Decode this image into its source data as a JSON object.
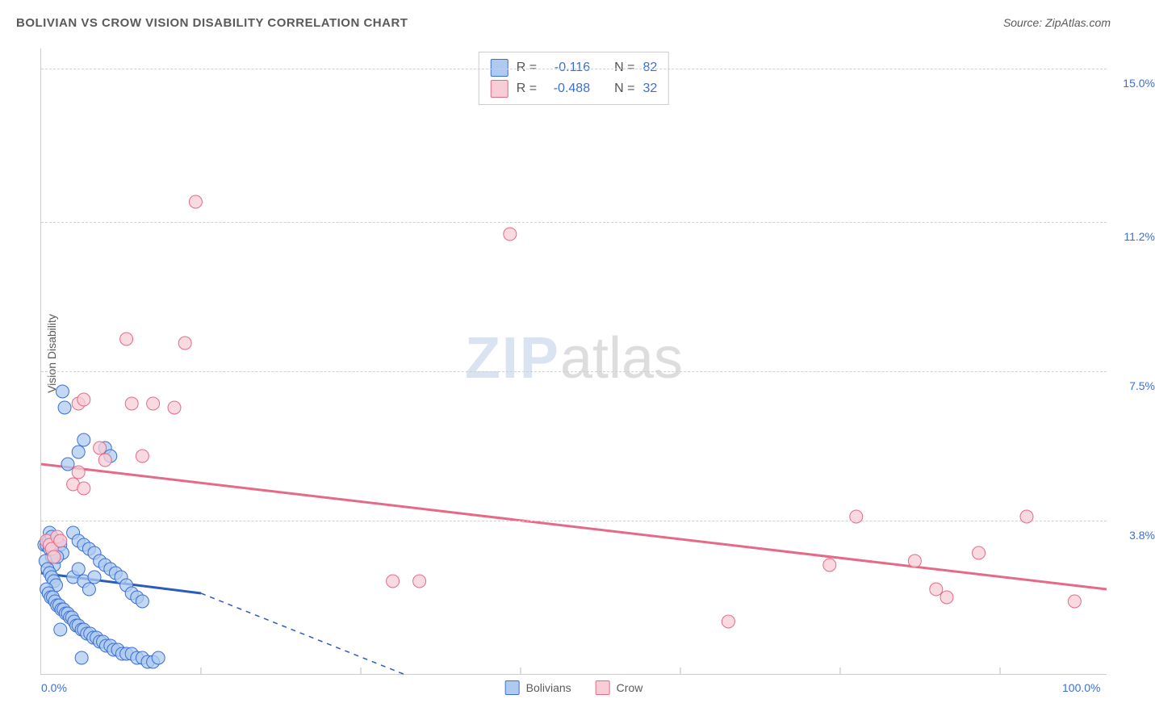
{
  "title": "BOLIVIAN VS CROW VISION DISABILITY CORRELATION CHART",
  "source": "Source: ZipAtlas.com",
  "watermark_bold": "ZIP",
  "watermark_light": "atlas",
  "y_axis_title": "Vision Disability",
  "chart": {
    "type": "scatter",
    "background_color": "#ffffff",
    "grid_color": "#d8d8d8",
    "xlim": [
      0,
      100
    ],
    "ylim": [
      0,
      15.5
    ],
    "x_ticks": [
      {
        "pos": 0.0,
        "label": "0.0%"
      },
      {
        "pos": 100.0,
        "label": "100.0%"
      }
    ],
    "x_minor_ticks": [
      15,
      30,
      45,
      60,
      75,
      90
    ],
    "y_ticks": [
      {
        "pos": 3.8,
        "label": "3.8%"
      },
      {
        "pos": 7.5,
        "label": "7.5%"
      },
      {
        "pos": 11.2,
        "label": "11.2%"
      },
      {
        "pos": 15.0,
        "label": "15.0%"
      }
    ],
    "series": [
      {
        "name": "Bolivians",
        "marker_fill": "#aecbef",
        "marker_stroke": "#3b6fd6",
        "marker_r": 8,
        "line_color": "#2c5bbd",
        "line_dash_ext": true,
        "regression": {
          "x1": 0,
          "y1": 2.5,
          "x2": 15,
          "y2": 2.0,
          "ext_x2": 34,
          "ext_y2": 0
        },
        "R": "-0.116",
        "N": "82",
        "points": [
          [
            0.3,
            3.2
          ],
          [
            0.5,
            3.2
          ],
          [
            0.7,
            3.3
          ],
          [
            0.8,
            3.1
          ],
          [
            1.0,
            2.9
          ],
          [
            1.2,
            2.7
          ],
          [
            0.4,
            2.8
          ],
          [
            0.6,
            2.6
          ],
          [
            0.8,
            2.5
          ],
          [
            1.0,
            2.4
          ],
          [
            1.2,
            2.3
          ],
          [
            1.4,
            2.2
          ],
          [
            0.5,
            2.1
          ],
          [
            0.7,
            2.0
          ],
          [
            0.9,
            1.9
          ],
          [
            1.1,
            1.9
          ],
          [
            1.3,
            1.8
          ],
          [
            1.5,
            1.7
          ],
          [
            1.7,
            1.7
          ],
          [
            1.9,
            1.6
          ],
          [
            2.1,
            1.6
          ],
          [
            2.3,
            1.5
          ],
          [
            2.5,
            1.5
          ],
          [
            2.7,
            1.4
          ],
          [
            2.9,
            1.4
          ],
          [
            3.1,
            1.3
          ],
          [
            3.3,
            1.2
          ],
          [
            3.5,
            1.2
          ],
          [
            3.8,
            1.1
          ],
          [
            4.0,
            1.1
          ],
          [
            4.3,
            1.0
          ],
          [
            4.6,
            1.0
          ],
          [
            4.9,
            0.9
          ],
          [
            5.2,
            0.9
          ],
          [
            5.5,
            0.8
          ],
          [
            5.8,
            0.8
          ],
          [
            6.1,
            0.7
          ],
          [
            6.5,
            0.7
          ],
          [
            6.8,
            0.6
          ],
          [
            7.2,
            0.6
          ],
          [
            7.6,
            0.5
          ],
          [
            8.0,
            0.5
          ],
          [
            8.5,
            0.5
          ],
          [
            9.0,
            0.4
          ],
          [
            9.5,
            0.4
          ],
          [
            10.0,
            0.3
          ],
          [
            10.5,
            0.3
          ],
          [
            11.0,
            0.4
          ],
          [
            3.0,
            3.5
          ],
          [
            3.5,
            3.3
          ],
          [
            4.0,
            3.2
          ],
          [
            4.5,
            3.1
          ],
          [
            5.0,
            3.0
          ],
          [
            5.5,
            2.8
          ],
          [
            6.0,
            2.7
          ],
          [
            6.5,
            2.6
          ],
          [
            7.0,
            2.5
          ],
          [
            7.5,
            2.4
          ],
          [
            8.0,
            2.2
          ],
          [
            8.5,
            2.0
          ],
          [
            9.0,
            1.9
          ],
          [
            9.5,
            1.8
          ],
          [
            2.5,
            5.2
          ],
          [
            3.5,
            5.5
          ],
          [
            4.0,
            5.8
          ],
          [
            2.0,
            7.0
          ],
          [
            2.2,
            6.6
          ],
          [
            6.0,
            5.6
          ],
          [
            6.5,
            5.4
          ],
          [
            1.5,
            3.3
          ],
          [
            1.8,
            3.2
          ],
          [
            2.0,
            3.0
          ],
          [
            0.8,
            3.5
          ],
          [
            1.0,
            3.4
          ],
          [
            1.5,
            2.9
          ],
          [
            3.0,
            2.4
          ],
          [
            3.5,
            2.6
          ],
          [
            4.0,
            2.3
          ],
          [
            4.5,
            2.1
          ],
          [
            5.0,
            2.4
          ],
          [
            1.8,
            1.1
          ],
          [
            3.8,
            0.4
          ]
        ]
      },
      {
        "name": "Crow",
        "marker_fill": "#f7cdd6",
        "marker_stroke": "#e56a88",
        "marker_r": 8,
        "line_color": "#e56a88",
        "line_dash_ext": false,
        "regression": {
          "x1": 0,
          "y1": 5.2,
          "x2": 100,
          "y2": 2.1
        },
        "R": "-0.488",
        "N": "32",
        "points": [
          [
            0.5,
            3.3
          ],
          [
            0.8,
            3.2
          ],
          [
            1.0,
            3.1
          ],
          [
            1.2,
            2.9
          ],
          [
            1.5,
            3.4
          ],
          [
            1.8,
            3.3
          ],
          [
            3.0,
            4.7
          ],
          [
            3.5,
            5.0
          ],
          [
            4.0,
            4.6
          ],
          [
            5.5,
            5.6
          ],
          [
            6.0,
            5.3
          ],
          [
            9.5,
            5.4
          ],
          [
            3.5,
            6.7
          ],
          [
            4.0,
            6.8
          ],
          [
            8.5,
            6.7
          ],
          [
            10.5,
            6.7
          ],
          [
            12.5,
            6.6
          ],
          [
            8.0,
            8.3
          ],
          [
            13.5,
            8.2
          ],
          [
            14.5,
            11.7
          ],
          [
            33.0,
            2.3
          ],
          [
            35.5,
            2.3
          ],
          [
            44.0,
            10.9
          ],
          [
            64.5,
            1.3
          ],
          [
            74.0,
            2.7
          ],
          [
            76.5,
            3.9
          ],
          [
            82.0,
            2.8
          ],
          [
            84.0,
            2.1
          ],
          [
            85.0,
            1.9
          ],
          [
            88.0,
            3.0
          ],
          [
            92.5,
            3.9
          ],
          [
            97.0,
            1.8
          ]
        ]
      }
    ],
    "legend_top": {
      "rows": [
        {
          "swatch_fill": "#aecbef",
          "swatch_stroke": "#3b6fd6",
          "r_label": "R =",
          "r_val": "-0.116",
          "n_label": "N =",
          "n_val": "82"
        },
        {
          "swatch_fill": "#f7cdd6",
          "swatch_stroke": "#e56a88",
          "r_label": "R =",
          "r_val": "-0.488",
          "n_label": "N =",
          "n_val": "32"
        }
      ]
    },
    "legend_bottom": [
      {
        "swatch_fill": "#aecbef",
        "swatch_stroke": "#3b6fd6",
        "label": "Bolivians"
      },
      {
        "swatch_fill": "#f7cdd6",
        "swatch_stroke": "#e56a88",
        "label": "Crow"
      }
    ]
  }
}
